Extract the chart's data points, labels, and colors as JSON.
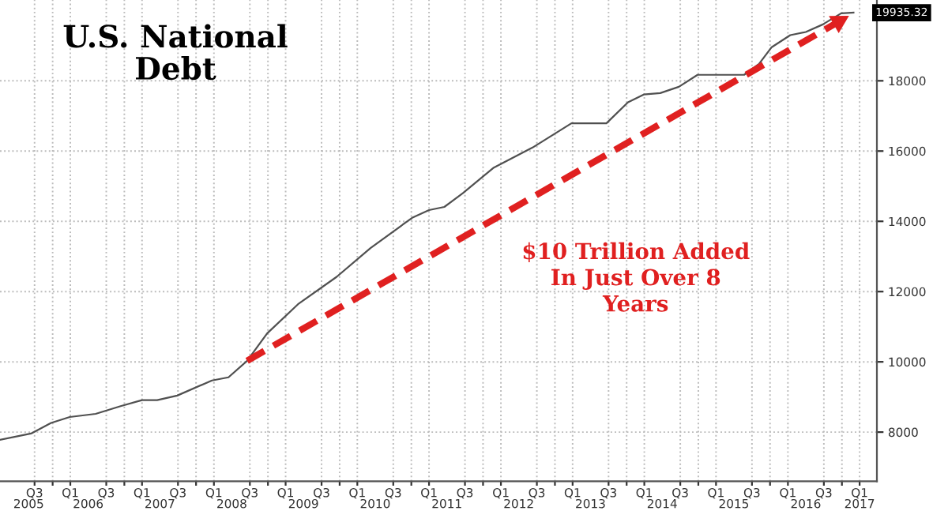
{
  "chart_data": {
    "type": "line",
    "title": "U.S. National\nDebt",
    "annotations": [
      "$10 Trillion Added\nIn Just Over 8\nYears",
      {
        "text": "19935.32",
        "x": "2017-03-01",
        "y": 19935.32
      }
    ],
    "series": [
      {
        "color": "#505050",
        "line_style": "solid",
        "x": [
          "2005-04-08",
          "2005-09-13",
          "2005-12-24",
          "2006-03-29",
          "2006-08-08",
          "2006-12-13",
          "2007-04-01",
          "2007-06-17",
          "2007-09-27",
          "2008-03-22",
          "2008-06-14",
          "2008-09-17",
          "2008-12-28",
          "2009-06-03",
          "2009-12-17",
          "2010-06-07",
          "2011-01-05",
          "2011-04-01",
          "2011-06-18",
          "2011-09-20",
          "2012-02-25",
          "2012-09-09",
          "2013-03-26",
          "2013-09-20",
          "2014-01-08",
          "2014-03-29",
          "2014-06-21",
          "2014-09-24",
          "2014-12-28",
          "2015-08-22",
          "2015-11-06",
          "2016-01-08",
          "2016-04-13",
          "2016-07-01",
          "2016-09-24",
          "2016-12-28",
          "2017-03-01"
        ],
        "values": [
          7780,
          7960,
          8260,
          8430,
          8520,
          8740,
          8910,
          8910,
          9040,
          9470,
          9560,
          10030,
          10810,
          11640,
          12420,
          13240,
          14100,
          14320,
          14410,
          14800,
          15530,
          16100,
          16790,
          16790,
          17390,
          17610,
          17650,
          17830,
          18170,
          18170,
          18480,
          18950,
          19300,
          19390,
          19600,
          19920,
          19940
        ]
      },
      {
        "color": "#e02020",
        "line_style": "dashed",
        "x": [
          "2008-09-17",
          "2017-02-06"
        ],
        "values": [
          10030,
          19850
        ]
      }
    ],
    "xlim": [
      "2005-04-08",
      "2017-06-28"
    ],
    "ylim": [
      6600,
      20300
    ],
    "xticks": [
      {
        "value": "2005-10-01",
        "label": "Q3"
      },
      {
        "value": "2006-01-01",
        "label": null
      },
      {
        "value": "2006-04-01",
        "label": "Q1"
      },
      {
        "value": "2006-10-01",
        "label": "Q3"
      },
      {
        "value": "2007-01-01",
        "label": null
      },
      {
        "value": "2007-04-01",
        "label": "Q1"
      },
      {
        "value": "2007-10-01",
        "label": "Q3"
      },
      {
        "value": "2008-01-01",
        "label": null
      },
      {
        "value": "2008-04-01",
        "label": "Q1"
      },
      {
        "value": "2008-10-01",
        "label": "Q3"
      },
      {
        "value": "2009-01-01",
        "label": null
      },
      {
        "value": "2009-04-01",
        "label": "Q1"
      },
      {
        "value": "2009-10-01",
        "label": "Q3"
      },
      {
        "value": "2010-01-01",
        "label": null
      },
      {
        "value": "2010-04-01",
        "label": "Q1"
      },
      {
        "value": "2010-10-01",
        "label": "Q3"
      },
      {
        "value": "2011-01-01",
        "label": null
      },
      {
        "value": "2011-04-01",
        "label": "Q1"
      },
      {
        "value": "2011-10-01",
        "label": "Q3"
      },
      {
        "value": "2012-01-01",
        "label": null
      },
      {
        "value": "2012-04-01",
        "label": "Q1"
      },
      {
        "value": "2012-10-01",
        "label": "Q3"
      },
      {
        "value": "2013-01-01",
        "label": null
      },
      {
        "value": "2013-04-01",
        "label": "Q1"
      },
      {
        "value": "2013-10-01",
        "label": "Q3"
      },
      {
        "value": "2014-01-01",
        "label": null
      },
      {
        "value": "2014-04-01",
        "label": "Q1"
      },
      {
        "value": "2014-10-01",
        "label": "Q3"
      },
      {
        "value": "2015-01-01",
        "label": null
      },
      {
        "value": "2015-04-01",
        "label": "Q1"
      },
      {
        "value": "2015-10-01",
        "label": "Q3"
      },
      {
        "value": "2016-01-01",
        "label": null
      },
      {
        "value": "2016-04-01",
        "label": "Q1"
      },
      {
        "value": "2016-10-01",
        "label": "Q3"
      },
      {
        "value": "2017-01-01",
        "label": null
      },
      {
        "value": "2017-04-01",
        "label": "Q1"
      }
    ],
    "x2lim": [
      "2005-04-08",
      "2017-06-28"
    ],
    "x2ticks": [
      {
        "value": "2005-09-01",
        "label": "2005"
      },
      {
        "value": "2006-07-01",
        "label": "2006"
      },
      {
        "value": "2007-07-01",
        "label": "2007"
      },
      {
        "value": "2008-07-01",
        "label": "2008"
      },
      {
        "value": "2009-07-01",
        "label": "2009"
      },
      {
        "value": "2010-07-01",
        "label": "2010"
      },
      {
        "value": "2011-07-01",
        "label": "2011"
      },
      {
        "value": "2012-07-01",
        "label": "2012"
      },
      {
        "value": "2013-07-01",
        "label": "2013"
      },
      {
        "value": "2014-07-01",
        "label": "2014"
      },
      {
        "value": "2015-07-01",
        "label": "2015"
      },
      {
        "value": "2016-07-01",
        "label": "2016"
      },
      {
        "value": "2017-04-01",
        "label": "2017"
      }
    ],
    "yticks": [
      8000,
      10000,
      12000,
      14000,
      16000,
      18000
    ],
    "grid": true
  }
}
